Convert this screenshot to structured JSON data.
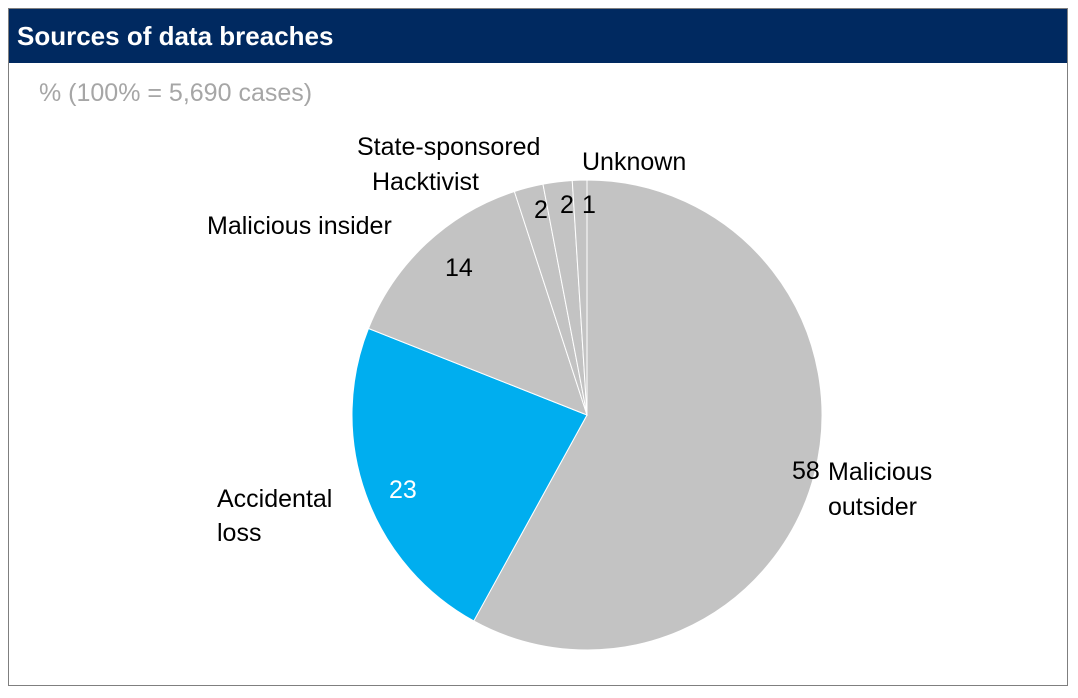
{
  "chart_data": {
    "type": "pie",
    "title": "Sources of data breaches",
    "subtitle": "% (100% = 5,690 cases)",
    "start_angle": "12 o'clock, clockwise",
    "categories": [
      "Malicious outsider",
      "Accidental loss",
      "Malicious insider",
      "State-sponsored",
      "Hacktivist",
      "Unknown"
    ],
    "values": [
      58,
      23,
      14,
      2,
      2,
      1
    ],
    "value_labels": [
      "58",
      "23",
      "14",
      "2",
      "2",
      "1"
    ],
    "category_labels": [
      [
        "Malicious",
        "outsider"
      ],
      [
        "Accidental",
        "loss"
      ],
      [
        "Malicious insider"
      ],
      [
        "State-sponsored"
      ],
      [
        "Hacktivist"
      ],
      [
        "Unknown"
      ]
    ],
    "colors": [
      "#c3c3c3",
      "#00aeef",
      "#c3c3c3",
      "#c3c3c3",
      "#c3c3c3",
      "#c3c3c3"
    ],
    "value_label_colors": [
      "#000000",
      "#ffffff",
      "#000000",
      "#000000",
      "#000000",
      "#000000"
    ]
  }
}
